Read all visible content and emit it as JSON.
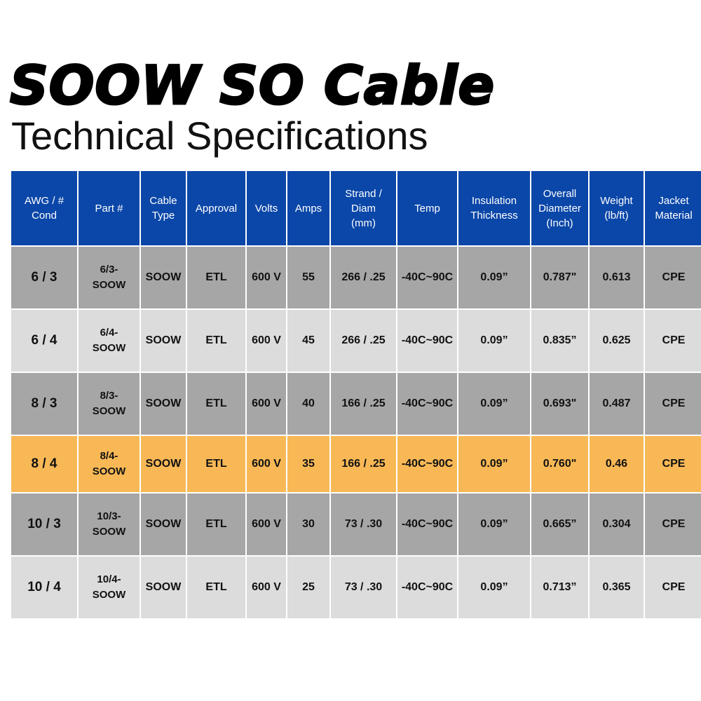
{
  "title": "SOOW SO Cable",
  "subtitle": "Technical Specifications",
  "colors": {
    "header_bg": "#0b47a8",
    "row_dark": "#a6a6a6",
    "row_light": "#dcdcdc",
    "row_highlight": "#f8b856"
  },
  "columns": [
    [
      "AWG / #",
      "Cond"
    ],
    [
      "Part #"
    ],
    [
      "Cable",
      "Type"
    ],
    [
      "Approval"
    ],
    [
      "Volts"
    ],
    [
      "Amps"
    ],
    [
      "Strand /",
      "Diam",
      "(mm)"
    ],
    [
      "Temp"
    ],
    [
      "Insulation",
      "Thickness"
    ],
    [
      "Overall",
      "Diameter",
      "(Inch)"
    ],
    [
      "Weight",
      "(lb/ft)"
    ],
    [
      "Jacket",
      "Material"
    ]
  ],
  "rows": [
    {
      "awg": "6 / 3",
      "part": [
        "6/3-",
        "SOOW"
      ],
      "type": "SOOW",
      "approval": "ETL",
      "volts": "600 V",
      "amps": "55",
      "strand": "266 / .25",
      "temp": "-40C~90C",
      "insulation": "0.09”",
      "diameter": "0.787\"",
      "weight": "0.613",
      "jacket": "CPE"
    },
    {
      "awg": "6 / 4",
      "part": [
        "6/4-",
        "SOOW"
      ],
      "type": "SOOW",
      "approval": "ETL",
      "volts": "600 V",
      "amps": "45",
      "strand": "266 / .25",
      "temp": "-40C~90C",
      "insulation": "0.09”",
      "diameter": "0.835”",
      "weight": "0.625",
      "jacket": "CPE"
    },
    {
      "awg": "8 / 3",
      "part": [
        "8/3-",
        "SOOW"
      ],
      "type": "SOOW",
      "approval": "ETL",
      "volts": "600 V",
      "amps": "40",
      "strand": "166 / .25",
      "temp": "-40C~90C",
      "insulation": "0.09”",
      "diameter": "0.693\"",
      "weight": "0.487",
      "jacket": "CPE"
    },
    {
      "awg": "8 / 4",
      "part": [
        "8/4-",
        "SOOW"
      ],
      "type": "SOOW",
      "approval": "ETL",
      "volts": "600 V",
      "amps": "35",
      "strand": "166 / .25",
      "temp": "-40C~90C",
      "insulation": "0.09”",
      "diameter": "0.760\"",
      "weight": "0.46",
      "jacket": "CPE"
    },
    {
      "awg": "10 / 3",
      "part": [
        "10/3-",
        "SOOW"
      ],
      "type": "SOOW",
      "approval": "ETL",
      "volts": "600 V",
      "amps": "30",
      "strand": "73 / .30",
      "temp": "-40C~90C",
      "insulation": "0.09”",
      "diameter": "0.665”",
      "weight": "0.304",
      "jacket": "CPE"
    },
    {
      "awg": "10 / 4",
      "part": [
        "10/4-",
        "SOOW"
      ],
      "type": "SOOW",
      "approval": "ETL",
      "volts": "600 V",
      "amps": "25",
      "strand": "73 / .30",
      "temp": "-40C~90C",
      "insulation": "0.09”",
      "diameter": "0.713”",
      "weight": "0.365",
      "jacket": "CPE"
    }
  ]
}
